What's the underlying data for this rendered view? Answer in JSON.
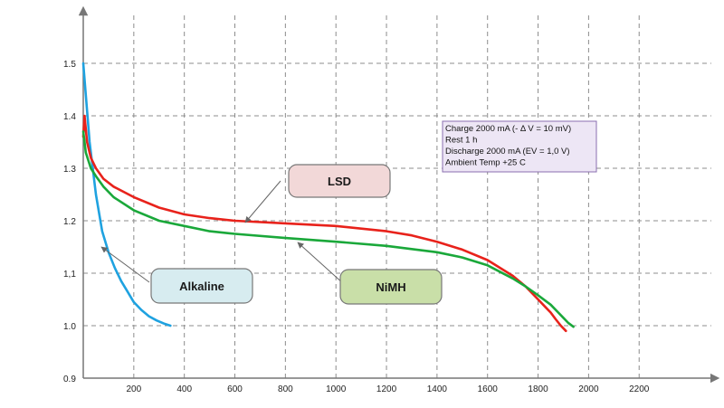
{
  "chart_data": {
    "type": "line",
    "title": "",
    "xlabel": "",
    "ylabel": "",
    "xlim": [
      0,
      2500
    ],
    "ylim": [
      0.9,
      1.6
    ],
    "grid": true,
    "x_ticks": [
      200,
      400,
      600,
      800,
      1000,
      1200,
      1400,
      1600,
      1800,
      2000,
      2200
    ],
    "x_tick_labels": [
      "200",
      "400",
      "600",
      "800",
      "1000",
      "1200",
      "1400",
      "1600",
      "1800",
      "2000",
      "2200"
    ],
    "y_ticks": [
      0.9,
      1.0,
      1.1,
      1.2,
      1.3,
      1.4,
      1.5
    ],
    "y_tick_labels": [
      "0.9",
      "1.0",
      "1,1",
      "1.2",
      "1.3",
      "1.4",
      "1.5"
    ],
    "series": [
      {
        "name": "Alkaline",
        "color": "#1fa2e0",
        "x": [
          0,
          10,
          25,
          50,
          75,
          100,
          125,
          150,
          175,
          200,
          230,
          260,
          290,
          320,
          345
        ],
        "y": [
          1.5,
          1.44,
          1.35,
          1.25,
          1.18,
          1.14,
          1.11,
          1.085,
          1.065,
          1.045,
          1.03,
          1.018,
          1.01,
          1.004,
          1.0
        ]
      },
      {
        "name": "LSD",
        "color": "#e8221b",
        "x": [
          0,
          5,
          15,
          30,
          50,
          80,
          120,
          200,
          300,
          400,
          500,
          600,
          800,
          1000,
          1200,
          1300,
          1400,
          1500,
          1600,
          1700,
          1750,
          1800,
          1830,
          1850,
          1870,
          1890,
          1910
        ],
        "y": [
          1.36,
          1.4,
          1.35,
          1.32,
          1.3,
          1.28,
          1.265,
          1.245,
          1.225,
          1.212,
          1.205,
          1.2,
          1.195,
          1.19,
          1.18,
          1.172,
          1.16,
          1.145,
          1.125,
          1.095,
          1.075,
          1.05,
          1.035,
          1.025,
          1.012,
          1.0,
          0.99
        ]
      },
      {
        "name": "NiMH",
        "color": "#1aa83a",
        "x": [
          0,
          10,
          30,
          50,
          80,
          120,
          200,
          300,
          400,
          500,
          600,
          800,
          1000,
          1200,
          1400,
          1500,
          1600,
          1700,
          1750,
          1800,
          1850,
          1880,
          1900,
          1920,
          1940
        ],
        "y": [
          1.37,
          1.33,
          1.3,
          1.285,
          1.265,
          1.245,
          1.22,
          1.2,
          1.19,
          1.18,
          1.175,
          1.167,
          1.16,
          1.152,
          1.14,
          1.13,
          1.115,
          1.09,
          1.075,
          1.058,
          1.04,
          1.025,
          1.015,
          1.005,
          0.998
        ]
      }
    ],
    "annotations": [
      {
        "label": "LSD",
        "target_series": "LSD",
        "fill": "#f2d8d8"
      },
      {
        "label": "NiMH",
        "target_series": "NiMH",
        "fill": "#c9dfa8"
      },
      {
        "label": "Alkaline",
        "target_series": "Alkaline",
        "fill": "#d7ecf0"
      }
    ],
    "conditions_box": {
      "fill": "#ede6f5",
      "border": "#8a6fb0",
      "lines": [
        "Charge 2000 mA (- Δ V = 10 mV)",
        "Rest 1 h",
        "Discharge 2000 mA  (EV = 1,0 V)",
        "Ambient Temp  +25 C"
      ]
    }
  }
}
